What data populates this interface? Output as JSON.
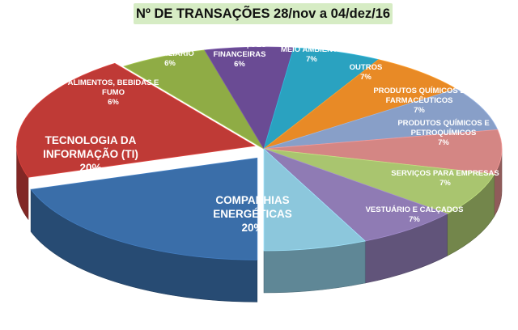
{
  "chart_data": {
    "type": "pie",
    "title": "Nº DE TRANSAÇÕES   28/nov a 04/dez/16",
    "slices": [
      {
        "label": [
          "COMPANHIAS",
          "ENERGÉTICAS"
        ],
        "value": 20,
        "value_label": "20%",
        "color": "#3a6ea9"
      },
      {
        "label": [
          "TECNOLOGIA DA",
          "INFORMAÇÃO (TI)"
        ],
        "value": 20,
        "value_label": "20%",
        "color": "#bf3a36"
      },
      {
        "label": [
          "ALIMENTOS, BEBIDAS E",
          "FUMO"
        ],
        "value": 6,
        "value_label": "6%",
        "color": "#8fac45"
      },
      {
        "label": [
          "IMOBILIÁRIO"
        ],
        "value": 6,
        "value_label": "6%",
        "color": "#6a4b94"
      },
      {
        "label": [
          "INSTITUIÇÕES",
          "FINANCEIRAS"
        ],
        "value": 6,
        "value_label": "6%",
        "color": "#2aa2c0"
      },
      {
        "label": [
          "MEIO AMBIENTE"
        ],
        "value": 7,
        "value_label": "7%",
        "color": "#e88a26"
      },
      {
        "label": [
          "OUTROS"
        ],
        "value": 7,
        "value_label": "7%",
        "color": "#889fc8"
      },
      {
        "label": [
          "PRODUTOS QUÍMICOS E",
          "FARMACÊUTICOS"
        ],
        "value": 7,
        "value_label": "7%",
        "color": "#d48684"
      },
      {
        "label": [
          "PRODUTOS QUÍMICOS E",
          "PETROQUÍMICOS"
        ],
        "value": 7,
        "value_label": "7%",
        "color": "#a9c56f"
      },
      {
        "label": [
          "SERVIÇOS PARA EMPRESAS"
        ],
        "value": 7,
        "value_label": "7%",
        "color": "#8f7bb4"
      },
      {
        "label": [
          "VESTUÁRIO E CALÇADOS"
        ],
        "value": 7,
        "value_label": "7%",
        "color": "#8cc7dc"
      }
    ]
  }
}
